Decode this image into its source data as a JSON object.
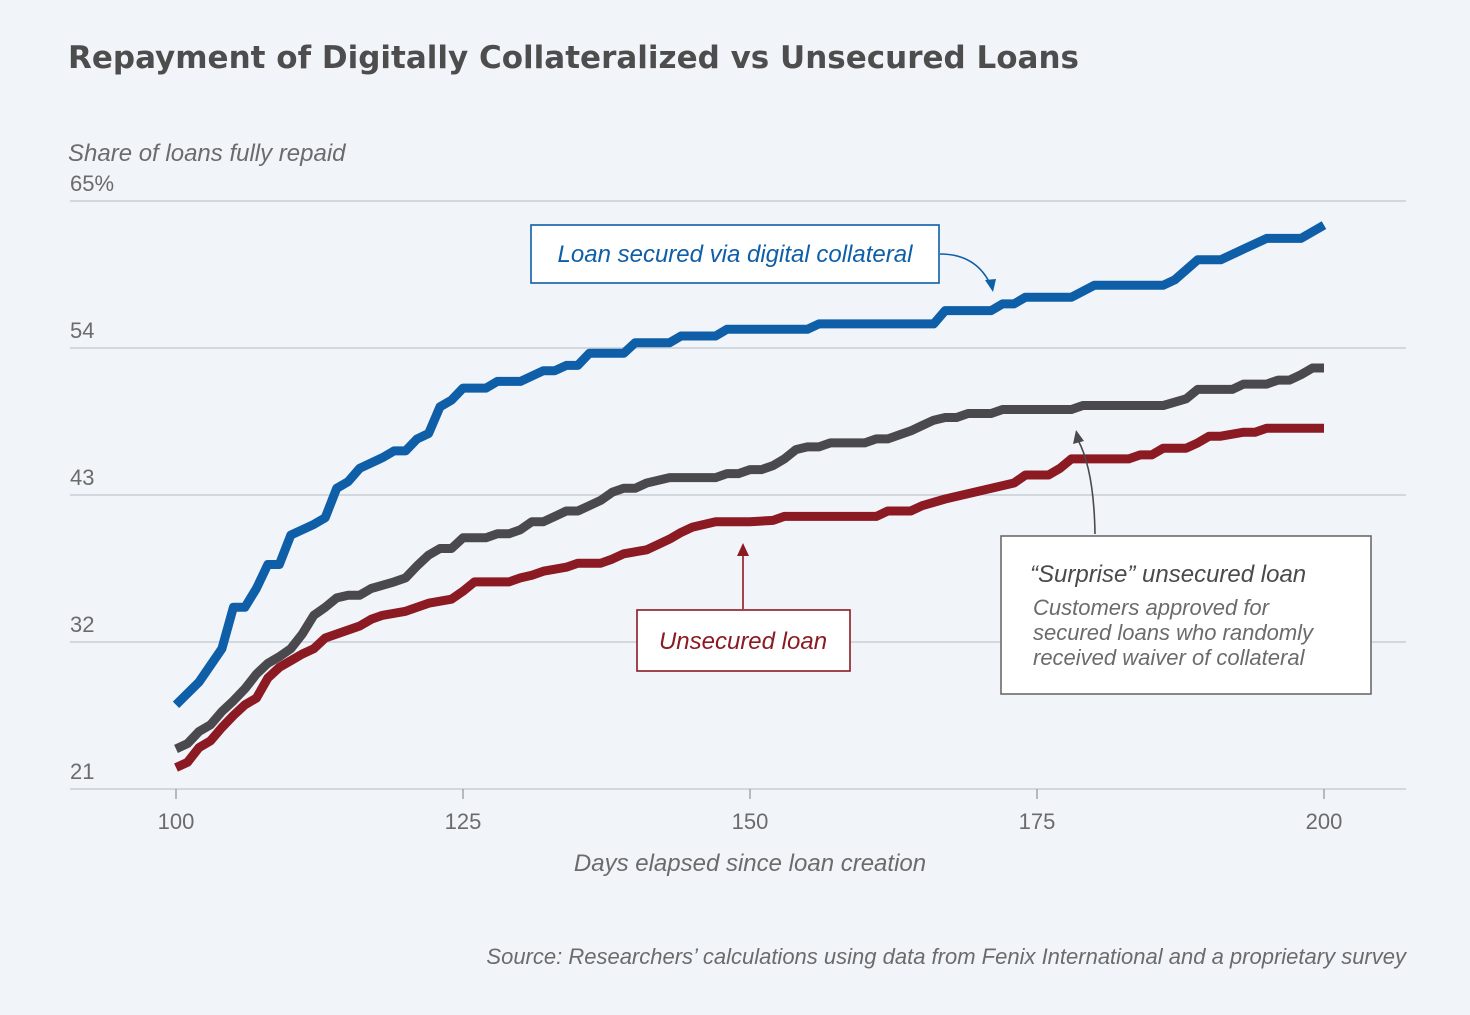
{
  "chart_data": {
    "type": "line",
    "title": "Repayment of Digitally Collateralized vs Unsecured Loans",
    "ylabel": "Share of loans fully repaid",
    "xlabel": "Days elapsed since loan creation",
    "source": "Source: Researchers’ calculations using data from Fenix International and a proprietary survey",
    "ylim": [
      21,
      65
    ],
    "xlim": [
      91,
      210
    ],
    "y_ticks": [
      {
        "value": 65,
        "label": "65%"
      },
      {
        "value": 54,
        "label": "54"
      },
      {
        "value": 43,
        "label": "43"
      },
      {
        "value": 32,
        "label": "32"
      },
      {
        "value": 21,
        "label": "21"
      }
    ],
    "x_ticks": [
      {
        "value": 100,
        "label": "100"
      },
      {
        "value": 125,
        "label": "125"
      },
      {
        "value": 150,
        "label": "150"
      },
      {
        "value": 175,
        "label": "175"
      },
      {
        "value": 200,
        "label": "200"
      }
    ],
    "grid": true,
    "series": [
      {
        "name": "Loan secured via digital collateral",
        "color": "#0e5ea8",
        "points": [
          [
            100,
            27.3
          ],
          [
            102,
            29
          ],
          [
            104,
            31.5
          ],
          [
            105,
            34.6
          ],
          [
            106,
            34.6
          ],
          [
            107,
            36
          ],
          [
            108,
            37.8
          ],
          [
            109,
            37.8
          ],
          [
            110,
            40
          ],
          [
            112,
            40.8
          ],
          [
            113,
            41.3
          ],
          [
            114,
            43.5
          ],
          [
            115,
            44
          ],
          [
            116,
            45
          ],
          [
            118,
            45.8
          ],
          [
            119,
            46.3
          ],
          [
            120,
            46.3
          ],
          [
            121,
            47.2
          ],
          [
            122,
            47.6
          ],
          [
            123,
            49.6
          ],
          [
            124,
            50.1
          ],
          [
            125,
            51
          ],
          [
            127,
            51
          ],
          [
            128,
            51.5
          ],
          [
            130,
            51.5
          ],
          [
            132,
            52.3
          ],
          [
            133,
            52.3
          ],
          [
            134,
            52.7
          ],
          [
            135,
            52.7
          ],
          [
            136,
            53.6
          ],
          [
            139,
            53.6
          ],
          [
            140,
            54.4
          ],
          [
            143,
            54.4
          ],
          [
            144,
            54.9
          ],
          [
            147,
            54.9
          ],
          [
            148,
            55.4
          ],
          [
            155,
            55.4
          ],
          [
            156,
            55.8
          ],
          [
            166,
            55.8
          ],
          [
            167,
            56.8
          ],
          [
            171,
            56.8
          ],
          [
            172,
            57.3
          ],
          [
            173,
            57.3
          ],
          [
            174,
            57.8
          ],
          [
            178,
            57.8
          ],
          [
            180,
            58.7
          ],
          [
            186,
            58.7
          ],
          [
            187,
            59.1
          ],
          [
            189,
            60.6
          ],
          [
            191,
            60.6
          ],
          [
            193,
            61.4
          ],
          [
            195,
            62.2
          ],
          [
            198,
            62.2
          ],
          [
            200,
            63.2
          ]
        ]
      },
      {
        "name": "“Surprise” unsecured loan",
        "color": "#4a4a4e",
        "points": [
          [
            100,
            24
          ],
          [
            101,
            24.4
          ],
          [
            102,
            25.3
          ],
          [
            103,
            25.8
          ],
          [
            104,
            26.8
          ],
          [
            105,
            27.6
          ],
          [
            106,
            28.5
          ],
          [
            107,
            29.6
          ],
          [
            108,
            30.4
          ],
          [
            109,
            30.9
          ],
          [
            110,
            31.5
          ],
          [
            111,
            32.6
          ],
          [
            112,
            34
          ],
          [
            113,
            34.6
          ],
          [
            114,
            35.3
          ],
          [
            115,
            35.5
          ],
          [
            116,
            35.5
          ],
          [
            117,
            36
          ],
          [
            119,
            36.5
          ],
          [
            120,
            36.8
          ],
          [
            121,
            37.7
          ],
          [
            122,
            38.5
          ],
          [
            123,
            39
          ],
          [
            124,
            39
          ],
          [
            125,
            39.8
          ],
          [
            127,
            39.8
          ],
          [
            128,
            40.1
          ],
          [
            129,
            40.1
          ],
          [
            130,
            40.4
          ],
          [
            131,
            41
          ],
          [
            132,
            41
          ],
          [
            133,
            41.4
          ],
          [
            134,
            41.8
          ],
          [
            135,
            41.8
          ],
          [
            136,
            42.2
          ],
          [
            137,
            42.6
          ],
          [
            138,
            43.2
          ],
          [
            139,
            43.5
          ],
          [
            140,
            43.5
          ],
          [
            141,
            43.9
          ],
          [
            143,
            44.3
          ],
          [
            147,
            44.3
          ],
          [
            148,
            44.6
          ],
          [
            149,
            44.6
          ],
          [
            150,
            44.9
          ],
          [
            151,
            44.9
          ],
          [
            152,
            45.2
          ],
          [
            153,
            45.7
          ],
          [
            154,
            46.4
          ],
          [
            155,
            46.6
          ],
          [
            156,
            46.6
          ],
          [
            157,
            46.9
          ],
          [
            160,
            46.9
          ],
          [
            161,
            47.2
          ],
          [
            162,
            47.2
          ],
          [
            163,
            47.5
          ],
          [
            164,
            47.8
          ],
          [
            165,
            48.2
          ],
          [
            166,
            48.6
          ],
          [
            167,
            48.8
          ],
          [
            168,
            48.8
          ],
          [
            169,
            49.1
          ],
          [
            171,
            49.1
          ],
          [
            172,
            49.4
          ],
          [
            178,
            49.4
          ],
          [
            179,
            49.7
          ],
          [
            186,
            49.7
          ],
          [
            188,
            50.2
          ],
          [
            189,
            50.9
          ],
          [
            192,
            50.9
          ],
          [
            193,
            51.3
          ],
          [
            195,
            51.3
          ],
          [
            196,
            51.6
          ],
          [
            197,
            51.6
          ],
          [
            198,
            52
          ],
          [
            199,
            52.5
          ],
          [
            200,
            52.5
          ]
        ]
      },
      {
        "name": "Unsecured loan",
        "color": "#8b1a22",
        "points": [
          [
            100,
            22.6
          ],
          [
            101,
            23
          ],
          [
            102,
            24.1
          ],
          [
            103,
            24.6
          ],
          [
            104,
            25.6
          ],
          [
            105,
            26.5
          ],
          [
            106,
            27.3
          ],
          [
            107,
            27.8
          ],
          [
            108,
            29.3
          ],
          [
            109,
            30.1
          ],
          [
            110,
            30.6
          ],
          [
            111,
            31.1
          ],
          [
            112,
            31.5
          ],
          [
            113,
            32.3
          ],
          [
            114,
            32.6
          ],
          [
            115,
            32.9
          ],
          [
            116,
            33.2
          ],
          [
            117,
            33.7
          ],
          [
            118,
            34
          ],
          [
            120,
            34.3
          ],
          [
            121,
            34.6
          ],
          [
            122,
            34.9
          ],
          [
            124,
            35.2
          ],
          [
            125,
            35.8
          ],
          [
            126,
            36.5
          ],
          [
            129,
            36.5
          ],
          [
            130,
            36.8
          ],
          [
            131,
            37
          ],
          [
            132,
            37.3
          ],
          [
            134,
            37.6
          ],
          [
            135,
            37.9
          ],
          [
            137,
            37.9
          ],
          [
            138,
            38.2
          ],
          [
            139,
            38.6
          ],
          [
            141,
            38.9
          ],
          [
            142,
            39.3
          ],
          [
            143,
            39.7
          ],
          [
            144,
            40.2
          ],
          [
            145,
            40.6
          ],
          [
            147,
            41
          ],
          [
            148,
            41
          ],
          [
            150,
            41
          ],
          [
            152,
            41.1
          ],
          [
            153,
            41.4
          ],
          [
            161,
            41.4
          ],
          [
            162,
            41.8
          ],
          [
            164,
            41.8
          ],
          [
            165,
            42.2
          ],
          [
            167,
            42.7
          ],
          [
            170,
            43.3
          ],
          [
            173,
            43.9
          ],
          [
            174,
            44.5
          ],
          [
            175,
            44.5
          ],
          [
            176,
            44.5
          ],
          [
            177,
            45
          ],
          [
            178,
            45.7
          ],
          [
            183,
            45.7
          ],
          [
            184,
            46
          ],
          [
            185,
            46
          ],
          [
            186,
            46.5
          ],
          [
            188,
            46.5
          ],
          [
            189,
            46.9
          ],
          [
            190,
            47.4
          ],
          [
            191,
            47.4
          ],
          [
            193,
            47.7
          ],
          [
            194,
            47.7
          ],
          [
            195,
            48
          ],
          [
            197,
            48
          ],
          [
            198,
            48
          ],
          [
            200,
            48
          ]
        ]
      }
    ],
    "annotations": {
      "digital": {
        "label": "Loan secured via digital collateral"
      },
      "unsecured": {
        "label": "Unsecured loan"
      },
      "surprise": {
        "label": "“Surprise” unsecured loan",
        "lines": [
          "Customers approved for",
          "secured loans who randomly",
          "received waiver of collateral"
        ]
      }
    }
  }
}
